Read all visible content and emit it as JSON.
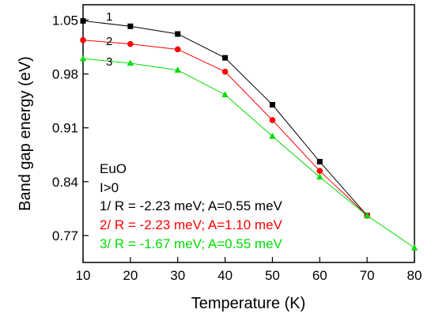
{
  "chart_data": {
    "type": "line",
    "xlabel": "Temperature (K)",
    "ylabel": "Band gap energy (eV)",
    "xlim": [
      10,
      80
    ],
    "ylim": [
      0.735,
      1.07
    ],
    "xticks": [
      10,
      20,
      30,
      40,
      50,
      60,
      70,
      80
    ],
    "yticks": [
      "1.05",
      "0.98",
      "0.91",
      "0.84",
      "0.77"
    ],
    "grid": false,
    "series": [
      {
        "name": "1",
        "color": "#000000",
        "marker": "square",
        "x": [
          10,
          20,
          30,
          40,
          50,
          60,
          70
        ],
        "y": [
          1.049,
          1.042,
          1.032,
          1.001,
          0.94,
          0.866,
          0.796
        ]
      },
      {
        "name": "2",
        "color": "#ff0000",
        "marker": "circle",
        "x": [
          10,
          20,
          30,
          40,
          50,
          60,
          70
        ],
        "y": [
          1.024,
          1.019,
          1.012,
          0.983,
          0.92,
          0.854,
          0.796
        ]
      },
      {
        "name": "3",
        "color": "#00dd00",
        "marker": "triangle",
        "x": [
          10,
          20,
          30,
          40,
          50,
          60,
          70,
          80
        ],
        "y": [
          1.0,
          0.994,
          0.985,
          0.953,
          0.899,
          0.846,
          0.796,
          0.754
        ]
      }
    ],
    "annotations": [
      {
        "text": "EuO",
        "color": "#000000"
      },
      {
        "text": "I>0",
        "color": "#000000"
      },
      {
        "text": "1/ R = -2.23 meV; A=0.55 meV",
        "color": "#000000"
      },
      {
        "text": "2/ R = -2.23 meV; A=1.10 meV",
        "color": "#ff0000"
      },
      {
        "text": "3/ R = -1.67 meV; A=0.55 meV",
        "color": "#00dd00"
      }
    ]
  }
}
